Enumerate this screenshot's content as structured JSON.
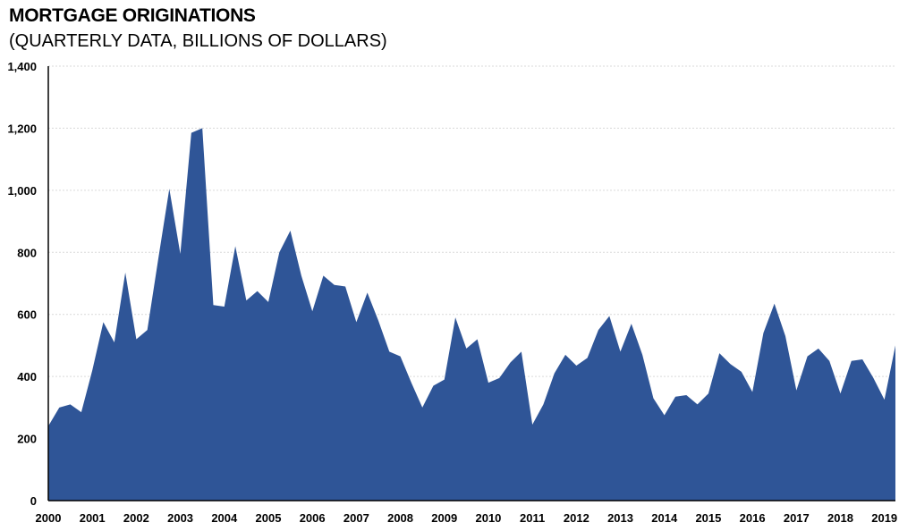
{
  "chart_data": {
    "type": "area",
    "title": "MORTGAGE ORIGINATIONS",
    "subtitle": "(QUARTERLY DATA, BILLIONS OF DOLLARS)",
    "xlabel": "",
    "ylabel": "",
    "ylim": [
      0,
      1400
    ],
    "yticks": [
      0,
      200,
      400,
      600,
      800,
      1000,
      1200,
      1400
    ],
    "ytick_labels": [
      "0",
      "200",
      "400",
      "600",
      "800",
      "1,000",
      "1,200",
      "1,400"
    ],
    "xlim": [
      2000.0,
      2019.25
    ],
    "xtick_labels": [
      "2000",
      "2001",
      "2002",
      "2003",
      "2004",
      "2005",
      "2006",
      "2007",
      "2008",
      "2009",
      "2010",
      "2011",
      "2012",
      "2013",
      "2014",
      "2015",
      "2016",
      "2017",
      "2018",
      "2019"
    ],
    "grid": true,
    "legend": "none",
    "colors": {
      "fill": "#2F5597",
      "grid": "#D9D9D9",
      "axis": "#000000"
    },
    "series": [
      {
        "x": [
          2000.0,
          2000.25,
          2000.5,
          2000.75,
          2001.0,
          2001.25,
          2001.5,
          2001.75,
          2002.0,
          2002.25,
          2002.5,
          2002.75,
          2003.0,
          2003.25,
          2003.5,
          2003.75,
          2004.0,
          2004.25,
          2004.5,
          2004.75,
          2005.0,
          2005.25,
          2005.5,
          2005.75,
          2006.0,
          2006.25,
          2006.5,
          2006.75,
          2007.0,
          2007.25,
          2007.5,
          2007.75,
          2008.0,
          2008.25,
          2008.5,
          2008.75,
          2009.0,
          2009.25,
          2009.5,
          2009.75,
          2010.0,
          2010.25,
          2010.5,
          2010.75,
          2011.0,
          2011.25,
          2011.5,
          2011.75,
          2012.0,
          2012.25,
          2012.5,
          2012.75,
          2013.0,
          2013.25,
          2013.5,
          2013.75,
          2014.0,
          2014.25,
          2014.5,
          2014.75,
          2015.0,
          2015.25,
          2015.5,
          2015.75,
          2016.0,
          2016.25,
          2016.5,
          2016.75,
          2017.0,
          2017.25,
          2017.5,
          2017.75,
          2018.0,
          2018.25,
          2018.5,
          2018.75,
          2019.0,
          2019.25
        ],
        "values": [
          240,
          300,
          310,
          285,
          420,
          575,
          510,
          735,
          520,
          550,
          780,
          1005,
          795,
          1185,
          1200,
          630,
          625,
          820,
          645,
          675,
          640,
          800,
          870,
          725,
          610,
          725,
          695,
          690,
          575,
          670,
          580,
          480,
          465,
          380,
          300,
          370,
          390,
          590,
          490,
          520,
          380,
          395,
          445,
          480,
          245,
          310,
          410,
          470,
          435,
          460,
          550,
          595,
          480,
          570,
          470,
          330,
          275,
          335,
          340,
          310,
          345,
          475,
          440,
          415,
          350,
          540,
          635,
          530,
          355,
          465,
          490,
          450,
          345,
          450,
          455,
          395,
          325,
          500
        ]
      }
    ]
  }
}
